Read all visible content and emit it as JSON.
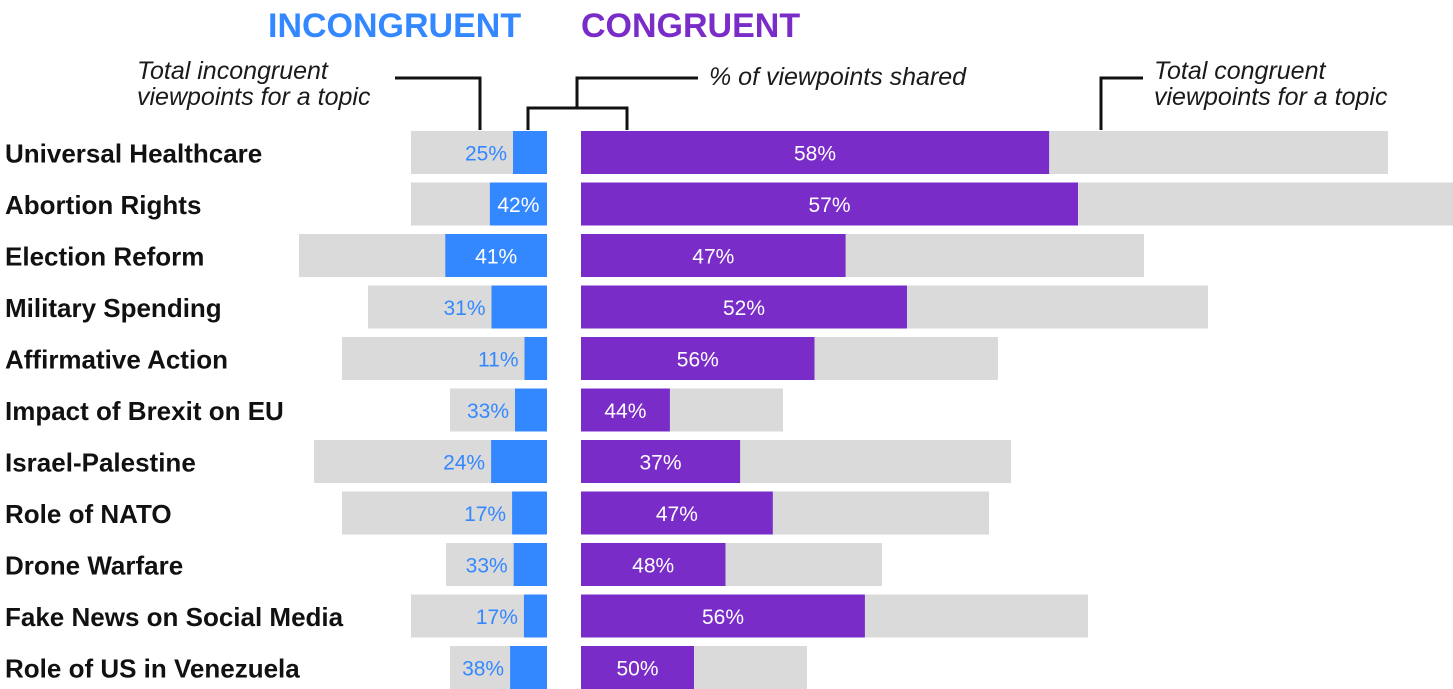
{
  "chart_data": {
    "type": "bar",
    "layout": "diverging-horizontal",
    "headers": {
      "incongruent": "INCONGRUENT",
      "congruent": "CONGRUENT"
    },
    "annotations": {
      "incongruent_total": [
        "Total incongruent",
        "viewpoints for a topic"
      ],
      "shared": "% of viewpoints shared",
      "congruent_total": [
        "Total congruent",
        "viewpoints for a topic"
      ]
    },
    "categories": [
      "Universal Healthcare",
      "Abortion Rights",
      "Election Reform",
      "Military Spending",
      "Affirmative Action",
      "Impact of Brexit on EU",
      "Israel-Palestine",
      "Role of NATO",
      "Drone Warfare",
      "Fake News on Social Media",
      "Role of US in Venezuela"
    ],
    "series": [
      {
        "name": "Total incongruent viewpoints",
        "side": "left",
        "values": [
          136,
          136,
          248,
          179,
          205,
          97,
          233,
          205,
          101,
          136,
          97
        ]
      },
      {
        "name": "Incongruent viewpoints shared (%)",
        "side": "left",
        "values": [
          25,
          42,
          41,
          31,
          11,
          33,
          24,
          17,
          33,
          17,
          38
        ]
      },
      {
        "name": "Total congruent viewpoints",
        "side": "right",
        "values": [
          807,
          872,
          563,
          627,
          417,
          202,
          430,
          408,
          301,
          507,
          226
        ]
      },
      {
        "name": "Congruent viewpoints shared (%)",
        "side": "right",
        "values": [
          58,
          57,
          47,
          52,
          56,
          44,
          37,
          47,
          48,
          56,
          50
        ]
      }
    ],
    "value_labels": {
      "incongruent": [
        "25%",
        "42%",
        "41%",
        "31%",
        "11%",
        "33%",
        "24%",
        "17%",
        "33%",
        "17%",
        "38%"
      ],
      "congruent": [
        "58%",
        "57%",
        "47%",
        "52%",
        "56%",
        "44%",
        "37%",
        "47%",
        "48%",
        "56%",
        "50%"
      ]
    },
    "xlabel": "",
    "ylabel": "",
    "grid": false,
    "colors": {
      "incongruent": "#3388ff",
      "congruent": "#7a2cc8",
      "total": "#dadada",
      "label_dark": "#111111",
      "leader": "#111111"
    }
  }
}
